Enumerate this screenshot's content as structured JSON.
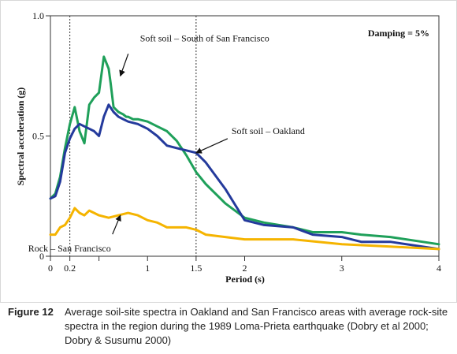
{
  "chart_data": {
    "type": "line",
    "xlabel": "Period (s)",
    "ylabel": "Spectral acceleration (g)",
    "xlim": [
      0,
      4
    ],
    "ylim": [
      0,
      1.0
    ],
    "x_ticks": [
      0,
      0.2,
      0.5,
      1,
      1.5,
      2,
      3,
      4
    ],
    "x_tick_labels": [
      "0",
      "0.2",
      "",
      "1",
      "1.5",
      "2",
      "3",
      "4"
    ],
    "y_ticks": [
      0,
      0.5,
      1.0
    ],
    "y_tick_labels": [
      "0",
      "0.5",
      "1.0"
    ],
    "grid": false,
    "reference_lines_x": [
      0.2,
      1.5
    ],
    "damping_label": "Damping = 5%",
    "series": [
      {
        "name": "Soft soil – South of San Francisco",
        "color": "#1fa05a",
        "x": [
          0,
          0.05,
          0.1,
          0.15,
          0.2,
          0.25,
          0.3,
          0.35,
          0.4,
          0.45,
          0.5,
          0.55,
          0.6,
          0.62,
          0.65,
          0.7,
          0.75,
          0.78,
          0.8,
          0.85,
          0.9,
          1.0,
          1.1,
          1.2,
          1.3,
          1.4,
          1.5,
          1.6,
          1.8,
          2.0,
          2.2,
          2.5,
          2.7,
          3.0,
          3.2,
          3.5,
          4.0
        ],
        "y": [
          0.24,
          0.26,
          0.33,
          0.45,
          0.55,
          0.62,
          0.52,
          0.47,
          0.63,
          0.66,
          0.68,
          0.83,
          0.78,
          0.72,
          0.62,
          0.6,
          0.59,
          0.58,
          0.58,
          0.57,
          0.57,
          0.56,
          0.54,
          0.52,
          0.48,
          0.42,
          0.35,
          0.3,
          0.22,
          0.16,
          0.14,
          0.12,
          0.1,
          0.1,
          0.09,
          0.08,
          0.05
        ]
      },
      {
        "name": "Soft soil – Oakland",
        "color": "#243a9c",
        "x": [
          0,
          0.05,
          0.1,
          0.15,
          0.2,
          0.25,
          0.3,
          0.35,
          0.4,
          0.45,
          0.5,
          0.55,
          0.6,
          0.65,
          0.7,
          0.75,
          0.8,
          0.9,
          1.0,
          1.1,
          1.2,
          1.3,
          1.4,
          1.5,
          1.6,
          1.8,
          2.0,
          2.2,
          2.5,
          2.7,
          3.0,
          3.2,
          3.5,
          4.0
        ],
        "y": [
          0.24,
          0.25,
          0.31,
          0.43,
          0.49,
          0.53,
          0.55,
          0.54,
          0.53,
          0.52,
          0.5,
          0.58,
          0.63,
          0.6,
          0.58,
          0.57,
          0.56,
          0.55,
          0.53,
          0.5,
          0.46,
          0.45,
          0.44,
          0.43,
          0.39,
          0.28,
          0.15,
          0.13,
          0.12,
          0.09,
          0.08,
          0.06,
          0.06,
          0.03
        ]
      },
      {
        "name": "Rock – San Francisco",
        "color": "#f5b400",
        "x": [
          0,
          0.05,
          0.1,
          0.15,
          0.2,
          0.25,
          0.3,
          0.35,
          0.4,
          0.45,
          0.5,
          0.6,
          0.7,
          0.8,
          0.9,
          1.0,
          1.1,
          1.2,
          1.4,
          1.5,
          1.6,
          1.8,
          2.0,
          2.5,
          3.0,
          3.5,
          4.0
        ],
        "y": [
          0.09,
          0.09,
          0.12,
          0.13,
          0.16,
          0.2,
          0.18,
          0.17,
          0.19,
          0.18,
          0.17,
          0.16,
          0.17,
          0.18,
          0.17,
          0.15,
          0.14,
          0.12,
          0.12,
          0.11,
          0.09,
          0.08,
          0.07,
          0.07,
          0.05,
          0.04,
          0.03
        ]
      }
    ],
    "annotations": [
      {
        "text": "Soft soil – South of San Francisco",
        "series": 0,
        "target_x": 0.72,
        "target_y": 0.75,
        "anchor": "above-right"
      },
      {
        "text": "Soft soil – Oakland",
        "series": 1,
        "target_x": 1.5,
        "target_y": 0.43,
        "anchor": "right"
      },
      {
        "text": "Rock – San Francisco",
        "series": 2,
        "target_x": 0.72,
        "target_y": 0.17,
        "anchor": "below-left"
      }
    ]
  },
  "caption": {
    "prefix": "Figure 12",
    "text": "Average soil-site spectra in Oakland and San Francisco areas with average rock-site spectra in the region during the 1989 Loma-Prieta earthquake (Dobry et al 2000; Dobry & Susumu 2000)"
  }
}
